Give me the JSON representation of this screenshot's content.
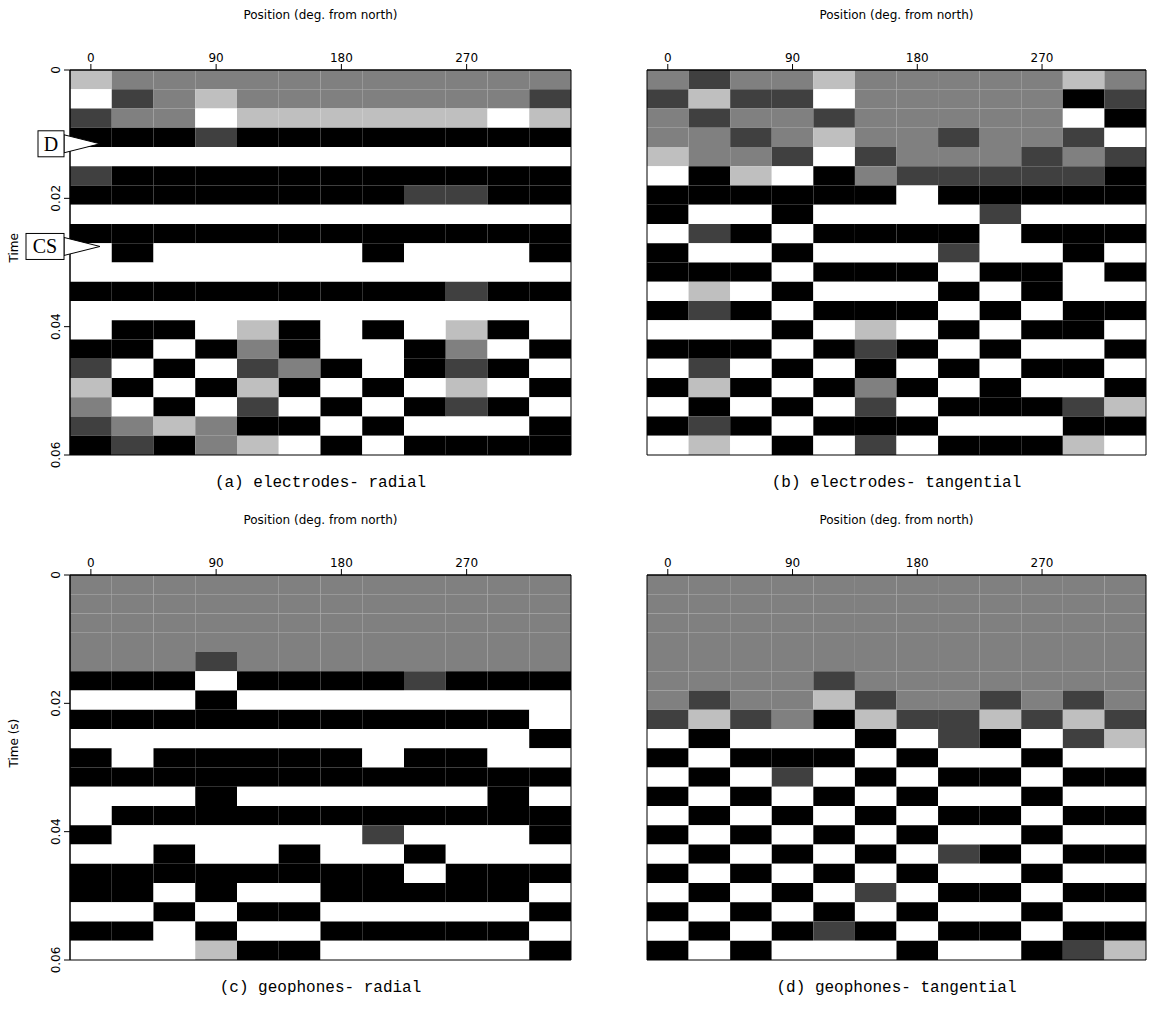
{
  "chart_data": [
    {
      "type": "heatmap",
      "title": "(a) electrodes- radial",
      "x_label": "Position (deg. from north)",
      "y_label": "Time",
      "x": [
        0,
        30,
        60,
        90,
        120,
        150,
        180,
        210,
        240,
        270,
        300,
        330
      ],
      "y": [
        0,
        0.003,
        0.006,
        0.009,
        0.012,
        0.015,
        0.018,
        0.021,
        0.024,
        0.027,
        0.03,
        0.033,
        0.036,
        0.039,
        0.042,
        0.045,
        0.048,
        0.051,
        0.054,
        0.057
      ],
      "xlim": [
        -15,
        345
      ],
      "xticks": [
        0,
        90,
        180,
        270
      ],
      "ylim": [
        0,
        0.06
      ],
      "yticks": [
        0,
        0.02,
        0.04,
        0.06
      ],
      "zlim": [
        -2,
        2
      ],
      "annotations": [
        {
          "text": "D",
          "y": 0.0115
        },
        {
          "text": "CS",
          "y": 0.0275
        }
      ],
      "cells": [
        [
          1,
          0,
          0,
          0,
          0,
          0,
          0,
          0,
          0,
          0,
          0,
          0
        ],
        [
          2,
          -1,
          0,
          1,
          0,
          0,
          0,
          0,
          0,
          0,
          0,
          -1
        ],
        [
          -1,
          0,
          0,
          2,
          1,
          1,
          1,
          1,
          1,
          1,
          2,
          1
        ],
        [
          -2,
          -2,
          -2,
          -1,
          -2,
          -2,
          -2,
          -2,
          -2,
          -2,
          -2,
          -2
        ],
        [
          2,
          2,
          2,
          2,
          2,
          2,
          2,
          2,
          2,
          2,
          2,
          2
        ],
        [
          -1,
          -2,
          -2,
          -2,
          -2,
          -2,
          -2,
          -2,
          -2,
          -2,
          -2,
          -2
        ],
        [
          -2,
          -2,
          -2,
          -2,
          -2,
          -2,
          -2,
          -2,
          -1,
          -1,
          -2,
          -2
        ],
        [
          2,
          2,
          2,
          2,
          2,
          2,
          2,
          2,
          2,
          2,
          2,
          2
        ],
        [
          -2,
          -2,
          -2,
          -2,
          -2,
          -2,
          -2,
          -2,
          -2,
          -2,
          -2,
          -2
        ],
        [
          2,
          -2,
          2,
          2,
          2,
          2,
          2,
          -2,
          2,
          2,
          2,
          -2
        ],
        [
          2,
          2,
          2,
          2,
          2,
          2,
          2,
          2,
          2,
          2,
          2,
          2
        ],
        [
          -2,
          -2,
          -2,
          -2,
          -2,
          -2,
          -2,
          -2,
          -2,
          -1,
          -2,
          -2
        ],
        [
          2,
          2,
          2,
          2,
          2,
          2,
          2,
          2,
          2,
          2,
          2,
          2
        ],
        [
          2,
          -2,
          -2,
          2,
          1,
          -2,
          2,
          -2,
          2,
          1,
          -2,
          2
        ],
        [
          -2,
          -2,
          2,
          -2,
          0,
          -2,
          2,
          2,
          -2,
          0,
          2,
          -2
        ],
        [
          -1,
          2,
          -2,
          2,
          -1,
          0,
          -2,
          2,
          -2,
          -1,
          -2,
          2
        ],
        [
          1,
          -2,
          2,
          -2,
          1,
          -2,
          2,
          -2,
          2,
          1,
          2,
          -2
        ],
        [
          0,
          2,
          -2,
          2,
          -1,
          2,
          -2,
          2,
          -2,
          -1,
          -2,
          2
        ],
        [
          -1,
          0,
          1,
          0,
          -2,
          -2,
          2,
          -2,
          2,
          2,
          2,
          -2
        ],
        [
          -2,
          -1,
          -2,
          0,
          1,
          2,
          -2,
          2,
          -2,
          -2,
          -2,
          -2
        ]
      ]
    },
    {
      "type": "heatmap",
      "title": "(b) electrodes- tangential",
      "x_label": "Position (deg. from north)",
      "x": [
        0,
        30,
        60,
        90,
        120,
        150,
        180,
        210,
        240,
        270,
        300,
        330
      ],
      "y": [
        0,
        0.003,
        0.006,
        0.009,
        0.012,
        0.015,
        0.018,
        0.021,
        0.024,
        0.027,
        0.03,
        0.033,
        0.036,
        0.039,
        0.042,
        0.045,
        0.048,
        0.051,
        0.054,
        0.057
      ],
      "xlim": [
        -15,
        345
      ],
      "xticks": [
        0,
        90,
        180,
        270
      ],
      "ylim": [
        0,
        0.06
      ],
      "zlim": [
        -2,
        2
      ],
      "tick_labels": "x",
      "cells": [
        [
          0,
          -1,
          0,
          0,
          1,
          0,
          0,
          0,
          0,
          0,
          1,
          0
        ],
        [
          -1,
          1,
          -1,
          -1,
          2,
          0,
          0,
          0,
          0,
          0,
          -2,
          -1
        ],
        [
          0,
          -1,
          0,
          0,
          -1,
          0,
          0,
          0,
          0,
          0,
          2,
          -2
        ],
        [
          0,
          0,
          -1,
          0,
          1,
          0,
          0,
          -1,
          0,
          0,
          -1,
          2
        ],
        [
          1,
          0,
          0,
          -1,
          2,
          -1,
          0,
          0,
          0,
          -1,
          0,
          -1
        ],
        [
          2,
          -2,
          1,
          2,
          -2,
          0,
          -1,
          -1,
          -1,
          -1,
          -1,
          -2
        ],
        [
          -2,
          -2,
          -2,
          -2,
          -2,
          -2,
          2,
          -2,
          -2,
          -2,
          -2,
          -2
        ],
        [
          -2,
          2,
          2,
          -2,
          2,
          2,
          2,
          2,
          -1,
          2,
          2,
          2
        ],
        [
          2,
          -1,
          -2,
          2,
          -2,
          -2,
          -2,
          -2,
          2,
          -2,
          -2,
          -2
        ],
        [
          -2,
          2,
          2,
          -2,
          2,
          2,
          2,
          -1,
          2,
          2,
          -2,
          2
        ],
        [
          -2,
          -2,
          -2,
          2,
          -2,
          -2,
          -2,
          2,
          -2,
          -2,
          2,
          -2
        ],
        [
          2,
          1,
          2,
          -2,
          2,
          2,
          2,
          -2,
          2,
          -2,
          2,
          2
        ],
        [
          -2,
          -1,
          -2,
          2,
          -2,
          -2,
          -2,
          2,
          -2,
          2,
          -2,
          -2
        ],
        [
          2,
          2,
          2,
          -2,
          2,
          1,
          2,
          -2,
          2,
          -2,
          -2,
          2
        ],
        [
          -2,
          -2,
          -2,
          2,
          -2,
          -1,
          -2,
          2,
          -2,
          2,
          2,
          -2
        ],
        [
          2,
          -1,
          2,
          -2,
          2,
          -2,
          2,
          -2,
          2,
          -2,
          -2,
          2
        ],
        [
          -2,
          1,
          -2,
          2,
          -2,
          0,
          -2,
          2,
          -2,
          2,
          2,
          -2
        ],
        [
          2,
          -2,
          2,
          -2,
          2,
          -1,
          2,
          -2,
          -2,
          -2,
          -1,
          1
        ],
        [
          -2,
          -1,
          -2,
          2,
          -2,
          -2,
          -2,
          2,
          2,
          2,
          -2,
          -2
        ],
        [
          2,
          1,
          2,
          -2,
          2,
          -1,
          2,
          -2,
          -2,
          -2,
          1,
          2
        ]
      ]
    },
    {
      "type": "heatmap",
      "title": "(c) geophones- radial",
      "x_label": "Position (deg. from north)",
      "y_label": "Time (s)",
      "x": [
        0,
        30,
        60,
        90,
        120,
        150,
        180,
        210,
        240,
        270,
        300,
        330
      ],
      "y": [
        0,
        0.003,
        0.006,
        0.009,
        0.012,
        0.015,
        0.018,
        0.021,
        0.024,
        0.027,
        0.03,
        0.033,
        0.036,
        0.039,
        0.042,
        0.045,
        0.048,
        0.051,
        0.054,
        0.057
      ],
      "xlim": [
        -15,
        345
      ],
      "xticks": [
        0,
        90,
        180,
        270
      ],
      "ylim": [
        0,
        0.06
      ],
      "yticks": [
        0,
        0.02,
        0.04,
        0.06
      ],
      "zlim": [
        -2,
        2
      ],
      "cells": [
        [
          0,
          0,
          0,
          0,
          0,
          0,
          0,
          0,
          0,
          0,
          0,
          0
        ],
        [
          0,
          0,
          0,
          0,
          0,
          0,
          0,
          0,
          0,
          0,
          0,
          0
        ],
        [
          0,
          0,
          0,
          0,
          0,
          0,
          0,
          0,
          0,
          0,
          0,
          0
        ],
        [
          0,
          0,
          0,
          0,
          0,
          0,
          0,
          0,
          0,
          0,
          0,
          0
        ],
        [
          0,
          0,
          0,
          -1,
          0,
          0,
          0,
          0,
          0,
          0,
          0,
          0
        ],
        [
          -2,
          -2,
          -2,
          2,
          -2,
          -2,
          -2,
          -2,
          -1,
          -2,
          -2,
          -2
        ],
        [
          2,
          2,
          2,
          -2,
          2,
          2,
          2,
          2,
          2,
          2,
          2,
          2
        ],
        [
          -2,
          -2,
          -2,
          -2,
          -2,
          -2,
          -2,
          -2,
          -2,
          -2,
          -2,
          2
        ],
        [
          2,
          2,
          2,
          2,
          2,
          2,
          2,
          2,
          2,
          2,
          2,
          -2
        ],
        [
          -2,
          2,
          -2,
          -2,
          -2,
          -2,
          -2,
          2,
          -2,
          -2,
          2,
          2
        ],
        [
          -2,
          -2,
          -2,
          -2,
          -2,
          -2,
          -2,
          -2,
          -2,
          -2,
          -2,
          -2
        ],
        [
          2,
          2,
          2,
          -2,
          2,
          2,
          2,
          2,
          2,
          2,
          -2,
          2
        ],
        [
          2,
          -2,
          -2,
          -2,
          -2,
          -2,
          -2,
          -2,
          -2,
          -2,
          -2,
          -2
        ],
        [
          -2,
          2,
          2,
          2,
          2,
          2,
          2,
          -1,
          2,
          2,
          2,
          -2
        ],
        [
          2,
          2,
          -2,
          2,
          2,
          -2,
          2,
          2,
          -2,
          2,
          2,
          2
        ],
        [
          -2,
          -2,
          -2,
          -2,
          -2,
          -2,
          -2,
          -2,
          2,
          -2,
          -2,
          -2
        ],
        [
          -2,
          -2,
          2,
          -2,
          2,
          2,
          -2,
          -2,
          -2,
          -2,
          -2,
          2
        ],
        [
          2,
          2,
          -2,
          2,
          -2,
          -2,
          2,
          2,
          2,
          2,
          2,
          -2
        ],
        [
          -2,
          -2,
          2,
          -2,
          2,
          2,
          -2,
          -2,
          -2,
          -2,
          -2,
          2
        ],
        [
          2,
          2,
          2,
          1,
          -2,
          -2,
          2,
          2,
          2,
          2,
          2,
          -2
        ]
      ]
    },
    {
      "type": "heatmap",
      "title": "(d) geophones- tangential",
      "x_label": "Position (deg. from north)",
      "x": [
        0,
        30,
        60,
        90,
        120,
        150,
        180,
        210,
        240,
        270,
        300,
        330
      ],
      "y": [
        0,
        0.003,
        0.006,
        0.009,
        0.012,
        0.015,
        0.018,
        0.021,
        0.024,
        0.027,
        0.03,
        0.033,
        0.036,
        0.039,
        0.042,
        0.045,
        0.048,
        0.051,
        0.054,
        0.057
      ],
      "xlim": [
        -15,
        345
      ],
      "xticks": [
        0,
        90,
        180,
        270
      ],
      "ylim": [
        0,
        0.06
      ],
      "zlim": [
        -2,
        2
      ],
      "tick_labels": "x",
      "cells": [
        [
          0,
          0,
          0,
          0,
          0,
          0,
          0,
          0,
          0,
          0,
          0,
          0
        ],
        [
          0,
          0,
          0,
          0,
          0,
          0,
          0,
          0,
          0,
          0,
          0,
          0
        ],
        [
          0,
          0,
          0,
          0,
          0,
          0,
          0,
          0,
          0,
          0,
          0,
          0
        ],
        [
          0,
          0,
          0,
          0,
          0,
          0,
          0,
          0,
          0,
          0,
          0,
          0
        ],
        [
          0,
          0,
          0,
          0,
          0,
          0,
          0,
          0,
          0,
          0,
          0,
          0
        ],
        [
          0,
          0,
          0,
          0,
          -1,
          0,
          0,
          0,
          0,
          0,
          0,
          0
        ],
        [
          0,
          -1,
          0,
          0,
          1,
          -1,
          0,
          0,
          -1,
          0,
          -1,
          0
        ],
        [
          -1,
          1,
          -1,
          0,
          -2,
          1,
          -1,
          -1,
          1,
          -1,
          1,
          -1
        ],
        [
          2,
          -2,
          2,
          2,
          2,
          -2,
          2,
          -1,
          -2,
          2,
          -1,
          1
        ],
        [
          -2,
          2,
          -2,
          -2,
          -2,
          2,
          -2,
          2,
          2,
          -2,
          2,
          2
        ],
        [
          2,
          -2,
          2,
          -1,
          2,
          -2,
          2,
          -2,
          -2,
          2,
          -2,
          -2
        ],
        [
          -2,
          2,
          -2,
          2,
          -2,
          2,
          -2,
          2,
          2,
          -2,
          2,
          2
        ],
        [
          2,
          -2,
          2,
          -2,
          2,
          -2,
          2,
          -2,
          -2,
          2,
          -2,
          -2
        ],
        [
          -2,
          2,
          -2,
          2,
          -2,
          2,
          -2,
          2,
          2,
          -2,
          2,
          2
        ],
        [
          2,
          -2,
          2,
          -2,
          2,
          -2,
          2,
          -1,
          -2,
          2,
          -2,
          -2
        ],
        [
          -2,
          2,
          -2,
          2,
          -2,
          2,
          -2,
          2,
          2,
          -2,
          2,
          2
        ],
        [
          2,
          -2,
          2,
          -2,
          2,
          -1,
          2,
          -2,
          -2,
          2,
          -2,
          -2
        ],
        [
          -2,
          2,
          -2,
          2,
          -2,
          2,
          -2,
          2,
          2,
          -2,
          2,
          2
        ],
        [
          2,
          -2,
          2,
          -2,
          -1,
          -2,
          2,
          -2,
          -2,
          2,
          -2,
          -2
        ],
        [
          -2,
          2,
          -2,
          2,
          2,
          2,
          -2,
          2,
          2,
          -2,
          -1,
          1
        ]
      ]
    }
  ]
}
